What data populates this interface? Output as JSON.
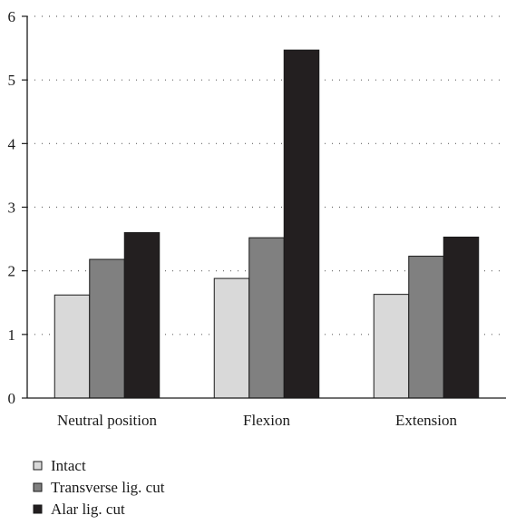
{
  "chart_data": {
    "type": "bar",
    "categories": [
      "Neutral position",
      "Flexion",
      "Extension"
    ],
    "series": [
      {
        "name": "Intact",
        "values": [
          1.62,
          1.88,
          1.63
        ],
        "color": "#d9d9d9"
      },
      {
        "name": "Transverse lig. cut",
        "values": [
          2.18,
          2.52,
          2.23
        ],
        "color": "#808080"
      },
      {
        "name": "Alar lig. cut",
        "values": [
          2.6,
          5.47,
          2.53
        ],
        "color": "#231f20"
      }
    ],
    "yticks": [
      "0",
      "1",
      "2",
      "3",
      "4",
      "5",
      "6"
    ],
    "ylim": [
      0,
      6
    ],
    "grid": "dotted horizontal",
    "legend_position": "bottom-left",
    "title": "",
    "xlabel": "",
    "ylabel": ""
  }
}
